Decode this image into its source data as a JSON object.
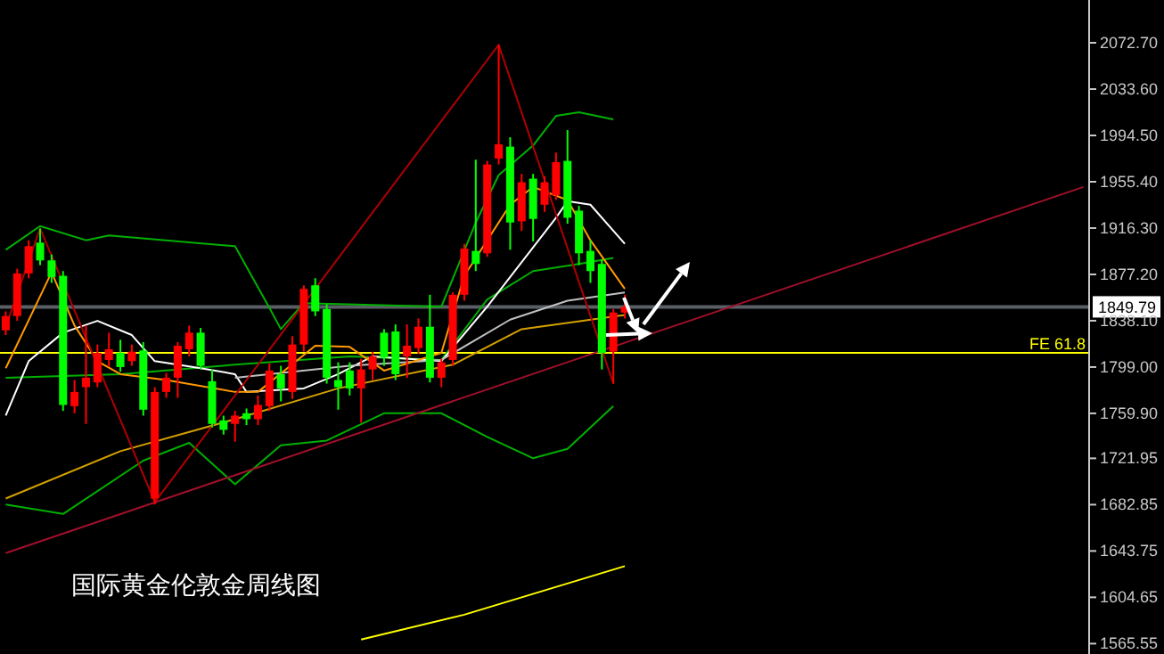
{
  "chart_data": {
    "type": "candlestick",
    "title": "国际黄金伦敦金周线图",
    "categories": [
      null,
      null,
      null,
      null,
      null,
      null,
      null,
      null,
      null,
      null,
      null,
      null,
      null,
      null,
      null,
      null,
      null,
      null,
      null,
      null,
      null,
      null,
      null,
      null,
      null,
      null,
      null,
      null,
      null,
      null,
      null,
      null,
      null,
      null,
      null,
      null,
      null,
      null,
      null,
      null,
      null,
      null,
      null,
      null,
      null,
      null,
      null,
      null,
      null,
      null,
      null,
      null,
      null,
      null,
      null,
      null,
      null,
      null,
      null,
      null,
      null,
      null,
      null,
      null,
      null,
      null,
      null,
      null,
      null,
      null,
      null,
      null,
      null,
      null,
      null,
      null,
      null,
      null,
      null,
      null,
      null,
      null,
      null,
      null,
      null,
      null,
      null,
      null,
      null,
      null,
      null,
      null,
      null,
      null,
      null
    ],
    "ohlc": [
      [
        1830,
        1846,
        1826,
        1842
      ],
      [
        1842,
        1882,
        1838,
        1878
      ],
      [
        1878,
        1906,
        1874,
        1901
      ],
      [
        1904,
        1916,
        1885,
        1889
      ],
      [
        1889,
        1894,
        1870,
        1875
      ],
      [
        1876,
        1880,
        1762,
        1767
      ],
      [
        1766,
        1788,
        1760,
        1778
      ],
      [
        1782,
        1834,
        1751,
        1790
      ],
      [
        1786,
        1818,
        1782,
        1811
      ],
      [
        1805,
        1828,
        1799,
        1814
      ],
      [
        1811,
        1822,
        1795,
        1799
      ],
      [
        1804,
        1818,
        1800,
        1812
      ],
      [
        1813,
        1820,
        1758,
        1763
      ],
      [
        1688,
        1782,
        1683,
        1778
      ],
      [
        1778,
        1794,
        1773,
        1790
      ],
      [
        1790,
        1820,
        1773,
        1817
      ],
      [
        1814,
        1834,
        1808,
        1828
      ],
      [
        1828,
        1832,
        1797,
        1800
      ],
      [
        1787,
        1797,
        1748,
        1751
      ],
      [
        1754,
        1758,
        1742,
        1746
      ],
      [
        1751,
        1762,
        1736,
        1758
      ],
      [
        1760,
        1764,
        1750,
        1755
      ],
      [
        1755,
        1775,
        1750,
        1767
      ],
      [
        1766,
        1802,
        1762,
        1796
      ],
      [
        1793,
        1800,
        1770,
        1781
      ],
      [
        1778,
        1825,
        1772,
        1818
      ],
      [
        1818,
        1868,
        1812,
        1865
      ],
      [
        1868,
        1874,
        1842,
        1846
      ],
      [
        1848,
        1852,
        1785,
        1790
      ],
      [
        1788,
        1803,
        1763,
        1782
      ],
      [
        1796,
        1803,
        1775,
        1781
      ],
      [
        1781,
        1806,
        1752,
        1797
      ],
      [
        1797,
        1812,
        1788,
        1808
      ],
      [
        1828,
        1831,
        1800,
        1807
      ],
      [
        1829,
        1835,
        1788,
        1793
      ],
      [
        1808,
        1835,
        1790,
        1817
      ],
      [
        1815,
        1840,
        1810,
        1833
      ],
      [
        1833,
        1860,
        1786,
        1790
      ],
      [
        1790,
        1806,
        1782,
        1803
      ],
      [
        1805,
        1862,
        1800,
        1860
      ],
      [
        1860,
        1903,
        1855,
        1899
      ],
      [
        1897,
        1974,
        1880,
        1886
      ],
      [
        1895,
        1973,
        1892,
        1970
      ],
      [
        1975,
        2071,
        1970,
        1987
      ],
      [
        1985,
        1993,
        1898,
        1921
      ],
      [
        1922,
        1962,
        1914,
        1955
      ],
      [
        1958,
        1962,
        1905,
        1924
      ],
      [
        1936,
        1960,
        1930,
        1955
      ],
      [
        1944,
        1980,
        1940,
        1972
      ],
      [
        1973,
        1999,
        1920,
        1925
      ],
      [
        1931,
        1935,
        1885,
        1895
      ],
      [
        1897,
        1906,
        1870,
        1880
      ],
      [
        1886,
        1890,
        1797,
        1811
      ],
      [
        1812,
        1848,
        1785,
        1845
      ],
      [
        1845,
        1860,
        1840,
        1849.79
      ],
      null,
      null,
      null,
      null,
      null,
      null,
      null,
      null,
      null,
      null,
      null,
      null,
      null,
      null,
      null,
      null,
      null,
      null,
      null,
      null,
      null,
      null,
      null,
      null,
      null,
      null,
      null,
      null,
      null,
      null,
      null,
      null,
      null,
      null,
      null,
      null,
      null,
      null,
      null,
      null
    ],
    "colors": [
      "#ff0000",
      "#ff0000",
      "#ff0000",
      "#00ff00",
      "#00ff00",
      "#00ff00",
      "#ff0000",
      "#ff0000",
      "#ff0000",
      "#ff0000",
      "#00ff00",
      "#ff0000",
      "#00ff00",
      "#ff0000",
      "#ff0000",
      "#ff0000",
      "#ff0000",
      "#00ff00",
      "#00ff00",
      "#00ff00",
      "#ff0000",
      "#00ff00",
      "#ff0000",
      "#ff0000",
      "#00ff00",
      "#ff0000",
      "#ff0000",
      "#00ff00",
      "#00ff00",
      "#00ff00",
      "#00ff00",
      "#ff0000",
      "#ff0000",
      "#00ff00",
      "#00ff00",
      "#ff0000",
      "#ff0000",
      "#00ff00",
      "#ff0000",
      "#ff0000",
      "#ff0000",
      "#00ff00",
      "#ff0000",
      "#ff0000",
      "#00ff00",
      "#ff0000",
      "#00ff00",
      "#ff0000",
      "#ff0000",
      "#00ff00",
      "#00ff00",
      "#00ff00",
      "#00ff00",
      "#ff0000",
      "#ff0000",
      null,
      null,
      null,
      null,
      null,
      null,
      null,
      null,
      null,
      null,
      null,
      null,
      null,
      null,
      null,
      null,
      null,
      null,
      null,
      null,
      null,
      null,
      null,
      null,
      null,
      null,
      null,
      null,
      null,
      null,
      null,
      null,
      null,
      null,
      null,
      null,
      null,
      null,
      null,
      null
    ],
    "ylim": [
      1556.8,
      2108.8
    ],
    "yticks": [
      {
        "value": 2072.7,
        "label": "2072.70"
      },
      {
        "value": 2033.6,
        "label": "2033.60"
      },
      {
        "value": 1994.5,
        "label": "1994.50"
      },
      {
        "value": 1955.4,
        "label": "1955.40"
      },
      {
        "value": 1916.3,
        "label": "1916.30"
      },
      {
        "value": 1877.2,
        "label": "1877.20"
      },
      {
        "value": 1838.1,
        "label": "1838.10"
      },
      {
        "value": 1799,
        "label": "1799.00"
      },
      {
        "value": 1759.9,
        "label": "1759.90"
      },
      {
        "value": 1721.95,
        "label": "1721.95"
      },
      {
        "value": 1682.85,
        "label": "1682.85"
      },
      {
        "value": 1643.75,
        "label": "1643.75"
      },
      {
        "value": 1604.65,
        "label": "1604.65"
      },
      {
        "value": 1565.55,
        "label": "1565.55"
      }
    ],
    "tick_labels": "y",
    "ref_lines": [
      {
        "axis": "y",
        "value": 1849.79,
        "label": "1849.79",
        "color": "#5a5f66"
      },
      {
        "axis": "y",
        "value": 1811,
        "label": "FE 61.8",
        "color": "#ffff00"
      }
    ],
    "series": [
      {
        "type": "line",
        "color": "#00b000",
        "values": [
          1898,
          null,
          null,
          1918,
          null,
          null,
          null,
          1906,
          null,
          1910,
          null,
          null,
          null,
          null,
          null,
          null,
          null,
          null,
          null,
          null,
          1901,
          null,
          null,
          1849,
          1831,
          null,
          1853,
          null,
          null,
          null,
          null,
          null,
          null,
          null,
          null,
          null,
          null,
          null,
          1850,
          null,
          null,
          1921,
          null,
          1961,
          null,
          null,
          1986,
          null,
          2011,
          null,
          2014,
          null,
          null,
          2008,
          null,
          null,
          null,
          null,
          null,
          null,
          null,
          null,
          null,
          null,
          null,
          null,
          null,
          null,
          null,
          null,
          null,
          null,
          null,
          null,
          null,
          null,
          null,
          null,
          null,
          null,
          null,
          null,
          null,
          null,
          null,
          null,
          null,
          null,
          null,
          null,
          null,
          null,
          null,
          null,
          null
        ]
      },
      {
        "type": "line",
        "color": "#00b000",
        "values": [
          1790,
          null,
          null,
          null,
          null,
          null,
          null,
          null,
          null,
          null,
          1793,
          null,
          null,
          null,
          null,
          null,
          null,
          null,
          null,
          null,
          1801,
          null,
          null,
          null,
          null,
          null,
          null,
          null,
          null,
          null,
          1808,
          null,
          null,
          null,
          null,
          null,
          null,
          null,
          1805,
          null,
          null,
          null,
          1856,
          null,
          null,
          null,
          1880,
          null,
          null,
          null,
          1886,
          null,
          null,
          1891,
          null,
          null,
          null,
          null,
          null,
          null,
          null,
          null,
          null,
          null,
          null,
          null,
          null,
          null,
          null,
          null,
          null,
          null,
          null,
          null,
          null,
          null,
          null,
          null,
          null,
          null,
          null,
          null,
          null,
          null,
          null,
          null,
          null,
          null,
          null,
          null,
          null,
          null,
          null,
          null,
          null
        ]
      },
      {
        "type": "line",
        "color": "#00b000",
        "values": [
          1683,
          null,
          null,
          null,
          null,
          1675,
          null,
          null,
          null,
          null,
          null,
          null,
          1720,
          null,
          null,
          null,
          1735,
          null,
          null,
          null,
          1700,
          null,
          null,
          null,
          1733,
          null,
          null,
          null,
          1737,
          null,
          null,
          null,
          null,
          1760,
          null,
          null,
          null,
          null,
          1760,
          null,
          null,
          null,
          1740,
          null,
          null,
          null,
          1722,
          null,
          null,
          1730,
          null,
          null,
          null,
          1766,
          null,
          null,
          null,
          null,
          null,
          null,
          null,
          null,
          null,
          null,
          null,
          null,
          null,
          null,
          null,
          null,
          null,
          null,
          null,
          null,
          null,
          null,
          null,
          null,
          null,
          null,
          null,
          null,
          null,
          null,
          null,
          null,
          null,
          null,
          null,
          null,
          null,
          null,
          null,
          null,
          null
        ]
      },
      {
        "type": "line",
        "color": "#ffffff",
        "values": [
          1758,
          null,
          1804,
          null,
          null,
          1828,
          null,
          null,
          1838,
          null,
          null,
          1826,
          null,
          1804,
          null,
          null,
          null,
          1798,
          null,
          null,
          1793,
          1778,
          null,
          null,
          null,
          null,
          1781,
          null,
          null,
          1793,
          null,
          null,
          1808,
          null,
          null,
          null,
          null,
          null,
          1804,
          null,
          null,
          null,
          1850,
          null,
          null,
          null,
          null,
          null,
          1925,
          1939,
          null,
          1936,
          null,
          null,
          1903,
          null,
          null,
          null,
          null,
          null,
          null,
          null,
          null,
          null,
          null,
          null,
          null,
          null,
          null,
          null,
          null,
          null,
          null,
          null,
          null,
          null,
          null,
          null,
          null,
          null,
          null,
          null,
          null,
          null,
          null,
          null,
          null,
          null,
          null,
          null,
          null,
          null,
          null,
          null,
          null
        ]
      },
      {
        "type": "line",
        "color": "#c0c0c0",
        "values": [
          null,
          null,
          null,
          null,
          null,
          null,
          null,
          null,
          null,
          null,
          null,
          null,
          null,
          null,
          null,
          null,
          null,
          null,
          null,
          null,
          1790,
          null,
          null,
          null,
          null,
          null,
          null,
          null,
          null,
          null,
          1800,
          null,
          null,
          null,
          null,
          null,
          null,
          null,
          1805,
          null,
          null,
          null,
          null,
          null,
          1839,
          null,
          null,
          null,
          null,
          1855,
          null,
          null,
          null,
          null,
          1862,
          null,
          null,
          null,
          null,
          null,
          null,
          null,
          null,
          null,
          null,
          null,
          null,
          null,
          null,
          null,
          null,
          null,
          null,
          null,
          null,
          null,
          null,
          null,
          null,
          null,
          null,
          null,
          null,
          null,
          null,
          null,
          null,
          null,
          null,
          null,
          null,
          null,
          null,
          null,
          null
        ]
      },
      {
        "type": "line",
        "color": "#ff9900",
        "values": [
          1798,
          null,
          null,
          null,
          1879,
          null,
          1834,
          null,
          1804,
          null,
          1793,
          null,
          null,
          null,
          1788,
          null,
          null,
          null,
          null,
          null,
          1778,
          null,
          1778,
          null,
          null,
          null,
          null,
          1817,
          null,
          null,
          1816,
          null,
          null,
          1796,
          null,
          null,
          null,
          null,
          1811,
          null,
          1876,
          null,
          null,
          null,
          1936,
          null,
          1951,
          null,
          null,
          1940,
          null,
          1906,
          null,
          null,
          1865,
          null,
          null,
          null,
          null,
          null,
          null,
          null,
          null,
          null,
          null,
          null,
          null,
          null,
          null,
          null,
          null,
          null,
          null,
          null,
          null,
          null,
          null,
          null,
          null,
          null,
          null,
          null,
          null,
          null,
          null,
          null,
          null,
          null,
          null,
          null,
          null,
          null,
          null,
          null,
          null
        ]
      },
      {
        "type": "line",
        "color": "#d4a000",
        "values": [
          1688,
          null,
          null,
          null,
          null,
          null,
          null,
          null,
          null,
          null,
          1728,
          null,
          null,
          null,
          null,
          null,
          null,
          null,
          null,
          null,
          1755,
          null,
          null,
          null,
          null,
          null,
          null,
          null,
          null,
          1781,
          null,
          null,
          null,
          null,
          null,
          null,
          null,
          null,
          null,
          1801,
          null,
          null,
          null,
          null,
          null,
          1831,
          null,
          null,
          null,
          null,
          null,
          null,
          null,
          null,
          1843,
          null,
          null,
          null,
          null,
          null,
          null,
          null,
          null,
          null,
          null,
          null,
          null,
          null,
          null,
          null,
          null,
          null,
          null,
          null,
          null,
          null,
          null,
          null,
          null,
          null,
          null,
          null,
          null,
          null,
          null,
          null,
          null,
          null,
          null,
          null,
          null,
          null,
          null,
          null,
          null
        ]
      },
      {
        "type": "line",
        "color": "#ffff00",
        "values": [
          null,
          null,
          null,
          null,
          null,
          null,
          null,
          null,
          null,
          null,
          null,
          null,
          null,
          null,
          null,
          null,
          null,
          null,
          null,
          null,
          null,
          null,
          null,
          null,
          null,
          null,
          null,
          null,
          null,
          null,
          null,
          1569,
          null,
          null,
          null,
          null,
          null,
          null,
          null,
          null,
          1590,
          null,
          null,
          null,
          null,
          null,
          null,
          null,
          null,
          null,
          null,
          null,
          null,
          null,
          1631,
          null,
          null,
          null,
          null,
          null,
          null,
          null,
          null,
          null,
          null,
          null,
          null,
          null,
          null,
          null,
          null,
          null,
          null,
          null,
          null,
          null,
          null,
          null,
          null,
          null,
          null,
          null,
          null,
          null,
          null,
          null,
          null,
          null,
          null,
          null,
          null,
          null,
          null,
          null,
          null
        ]
      },
      {
        "type": "line",
        "color": "#b00000",
        "values": [
          1833,
          null,
          null,
          1916,
          null,
          null,
          null,
          null,
          null,
          null,
          null,
          null,
          null,
          1685,
          null,
          null,
          null,
          null,
          null,
          null,
          null,
          null,
          null,
          null,
          null,
          null,
          null,
          null,
          null,
          null,
          null,
          null,
          null,
          null,
          null,
          null,
          null,
          null,
          null,
          null,
          null,
          null,
          null,
          2071,
          null,
          null,
          null,
          null,
          null,
          null,
          null,
          null,
          null,
          1785,
          null,
          null,
          null,
          null,
          null,
          null,
          null,
          null,
          null,
          null,
          null,
          null,
          null,
          null,
          null,
          null,
          null,
          null,
          null,
          null,
          null,
          null,
          null,
          null,
          null,
          null,
          null,
          null,
          null,
          null,
          null,
          null,
          null,
          null,
          null,
          null,
          null,
          null,
          null,
          null,
          null
        ]
      },
      {
        "type": "line",
        "color": "#a0102a",
        "values": [
          1642,
          null,
          null,
          null,
          null,
          null,
          null,
          null,
          null,
          null,
          null,
          null,
          null,
          null,
          null,
          null,
          null,
          null,
          null,
          null,
          null,
          null,
          null,
          null,
          null,
          null,
          null,
          null,
          null,
          null,
          null,
          null,
          null,
          null,
          null,
          null,
          null,
          null,
          null,
          null,
          null,
          null,
          null,
          null,
          null,
          null,
          null,
          null,
          null,
          null,
          null,
          null,
          null,
          null,
          null,
          null,
          null,
          null,
          null,
          null,
          null,
          null,
          null,
          null,
          null,
          null,
          null,
          null,
          null,
          null,
          null,
          null,
          null,
          null,
          null,
          null,
          null,
          null,
          null,
          null,
          null,
          null,
          null,
          null,
          null,
          null,
          null,
          null,
          null,
          null,
          null,
          null,
          null,
          null,
          1951
        ]
      }
    ]
  }
}
